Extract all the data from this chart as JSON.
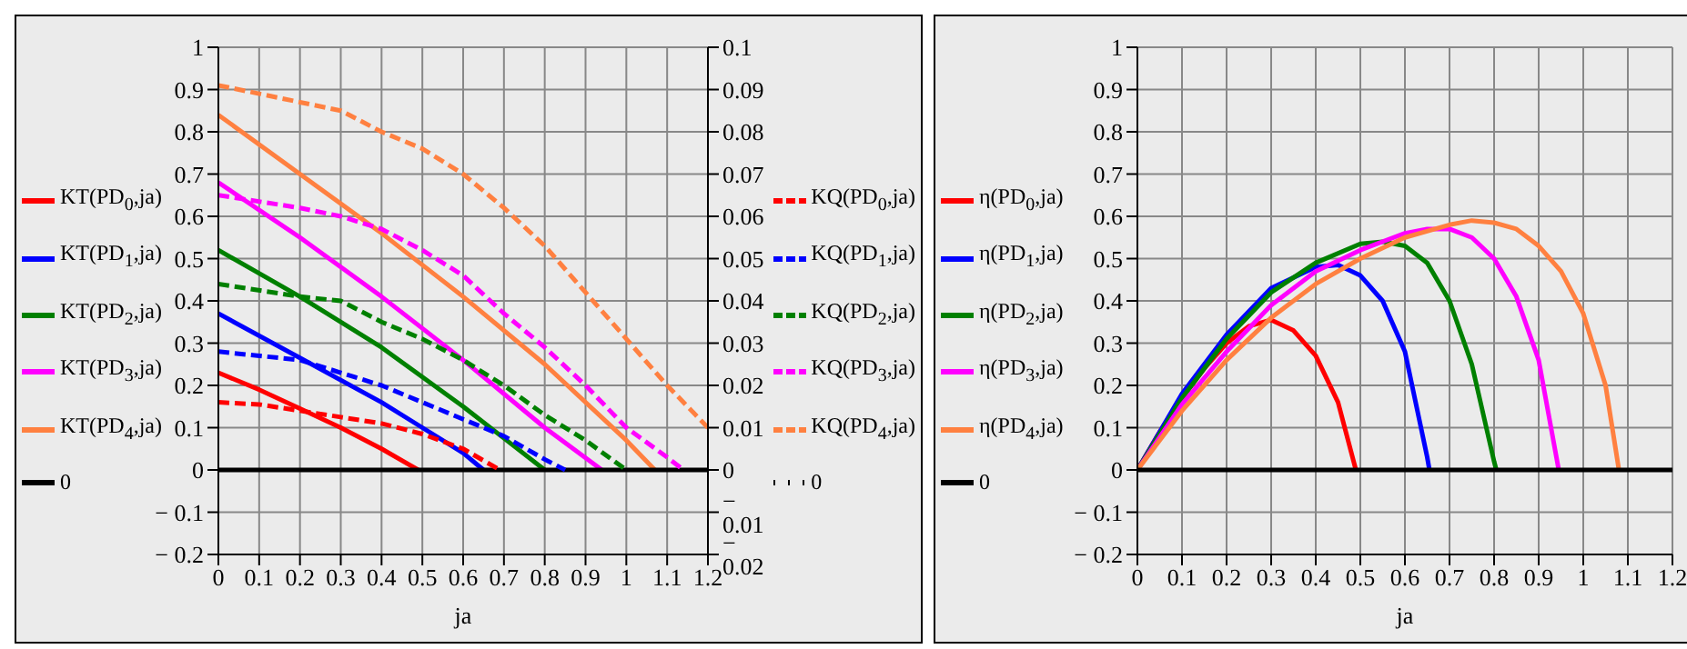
{
  "chart_data": [
    {
      "type": "line",
      "xlabel": "ja",
      "xlim": [
        0,
        1.2
      ],
      "xticks": [
        0,
        0.1,
        0.2,
        0.3,
        0.4,
        0.5,
        0.6,
        0.7,
        0.8,
        0.9,
        1,
        1.1,
        1.2
      ],
      "ylim": [
        -0.2,
        1
      ],
      "yticks": [
        -0.2,
        -0.1,
        0,
        0.1,
        0.2,
        0.3,
        0.4,
        0.5,
        0.6,
        0.7,
        0.8,
        0.9,
        1
      ],
      "y2lim": [
        -0.02,
        0.1
      ],
      "y2ticks": [
        -0.02,
        -0.01,
        0,
        0.01,
        0.02,
        0.03,
        0.04,
        0.05,
        0.06,
        0.07,
        0.08,
        0.09,
        0.1
      ],
      "grid": true,
      "legend": "left",
      "line_style": "solid",
      "series": [
        {
          "name": "KT(PD$_{0}$,ja)",
          "color": "#ff0000",
          "x": [
            0,
            0.1,
            0.2,
            0.3,
            0.4,
            0.49
          ],
          "values": [
            0.23,
            0.19,
            0.145,
            0.1,
            0.05,
            0
          ]
        },
        {
          "name": "KT(PD$_{1}$,ja)",
          "color": "#0000ff",
          "x": [
            0,
            0.2,
            0.4,
            0.5,
            0.6,
            0.65
          ],
          "values": [
            0.37,
            0.265,
            0.16,
            0.1,
            0.04,
            0
          ]
        },
        {
          "name": "KT(PD$_{2}$,ja)",
          "color": "#008000",
          "x": [
            0,
            0.2,
            0.4,
            0.5,
            0.6,
            0.7,
            0.8
          ],
          "values": [
            0.52,
            0.41,
            0.29,
            0.22,
            0.15,
            0.075,
            0
          ]
        },
        {
          "name": "KT(PD$_{3}$,ja)",
          "color": "#ff00ff",
          "x": [
            0,
            0.2,
            0.4,
            0.6,
            0.8,
            0.94
          ],
          "values": [
            0.68,
            0.55,
            0.41,
            0.26,
            0.1,
            0
          ]
        },
        {
          "name": "KT(PD$_{4}$,ja)",
          "color": "#ff8040",
          "x": [
            0,
            0.2,
            0.4,
            0.6,
            0.8,
            1,
            1.07
          ],
          "values": [
            0.84,
            0.7,
            0.56,
            0.41,
            0.25,
            0.07,
            0
          ]
        },
        {
          "name": "0",
          "color": "#000000",
          "x": [
            0,
            1.2
          ],
          "values": [
            0,
            0
          ]
        },
        {
          "name": "KQ(PD$_{0}$,ja)",
          "color": "#ff0000",
          "axis": "y2",
          "line_style": "dashed",
          "x": [
            0,
            0.1,
            0.2,
            0.3,
            0.4,
            0.5,
            0.6,
            0.69
          ],
          "values": [
            0.016,
            0.0155,
            0.014,
            0.0125,
            0.011,
            0.0085,
            0.005,
            0
          ]
        },
        {
          "name": "KQ(PD$_{1}$,ja)",
          "color": "#0000ff",
          "axis": "y2",
          "line_style": "dashed",
          "x": [
            0,
            0.2,
            0.3,
            0.4,
            0.5,
            0.6,
            0.7,
            0.8,
            0.85
          ],
          "values": [
            0.028,
            0.026,
            0.023,
            0.02,
            0.016,
            0.012,
            0.008,
            0.0025,
            0
          ]
        },
        {
          "name": "KQ(PD$_{2}$,ja)",
          "color": "#008000",
          "axis": "y2",
          "line_style": "dashed",
          "x": [
            0,
            0.2,
            0.3,
            0.4,
            0.5,
            0.6,
            0.7,
            0.8,
            0.9,
            1
          ],
          "values": [
            0.044,
            0.041,
            0.04,
            0.035,
            0.031,
            0.026,
            0.02,
            0.013,
            0.007,
            0
          ]
        },
        {
          "name": "KQ(PD$_{3}$,ja)",
          "color": "#ff00ff",
          "axis": "y2",
          "line_style": "dashed",
          "x": [
            0,
            0.2,
            0.3,
            0.4,
            0.5,
            0.6,
            0.7,
            0.8,
            0.9,
            1,
            1.1,
            1.14
          ],
          "values": [
            0.065,
            0.062,
            0.06,
            0.057,
            0.052,
            0.046,
            0.037,
            0.029,
            0.02,
            0.01,
            0.003,
            0
          ]
        },
        {
          "name": "KQ(PD$_{4}$,ja)",
          "color": "#ff8040",
          "axis": "y2",
          "line_style": "dashed",
          "x": [
            0,
            0.1,
            0.2,
            0.3,
            0.4,
            0.5,
            0.6,
            0.7,
            0.8,
            0.9,
            1,
            1.1,
            1.2
          ],
          "values": [
            0.091,
            0.089,
            0.087,
            0.085,
            0.08,
            0.076,
            0.07,
            0.062,
            0.053,
            0.042,
            0.031,
            0.02,
            0.01
          ]
        },
        {
          "name": "0",
          "color": "#000000",
          "axis": "y2",
          "line_style": "dotted",
          "values": [
            null,
            null
          ]
        }
      ]
    },
    {
      "type": "line",
      "xlabel": "ja",
      "xlim": [
        0,
        1.2
      ],
      "xticks": [
        0,
        0.1,
        0.2,
        0.3,
        0.4,
        0.5,
        0.6,
        0.7,
        0.8,
        0.9,
        1,
        1.1,
        1.2
      ],
      "ylim": [
        -0.2,
        1
      ],
      "yticks": [
        -0.2,
        -0.1,
        0,
        0.1,
        0.2,
        0.3,
        0.4,
        0.5,
        0.6,
        0.7,
        0.8,
        0.9,
        1
      ],
      "grid": true,
      "legend": "left",
      "line_style": "solid",
      "series": [
        {
          "name": "η(PD$_{0}$,ja)",
          "color": "#ff0000",
          "x": [
            0,
            0.05,
            0.1,
            0.15,
            0.2,
            0.25,
            0.3,
            0.35,
            0.4,
            0.45,
            0.49
          ],
          "values": [
            0,
            0.09,
            0.17,
            0.24,
            0.3,
            0.34,
            0.355,
            0.33,
            0.27,
            0.16,
            0
          ]
        },
        {
          "name": "η(PD$_{1}$,ja)",
          "color": "#0000ff",
          "x": [
            0,
            0.1,
            0.2,
            0.3,
            0.4,
            0.45,
            0.5,
            0.55,
            0.6,
            0.65,
            0.655
          ],
          "values": [
            0,
            0.18,
            0.32,
            0.43,
            0.48,
            0.485,
            0.46,
            0.4,
            0.28,
            0.03,
            0
          ]
        },
        {
          "name": "η(PD$_{2}$,ja)",
          "color": "#008000",
          "x": [
            0,
            0.1,
            0.2,
            0.3,
            0.4,
            0.5,
            0.55,
            0.6,
            0.65,
            0.7,
            0.75,
            0.8,
            0.805
          ],
          "values": [
            0,
            0.17,
            0.31,
            0.42,
            0.49,
            0.535,
            0.54,
            0.53,
            0.49,
            0.4,
            0.25,
            0.02,
            0
          ]
        },
        {
          "name": "η(PD$_{3}$,ja)",
          "color": "#ff00ff",
          "x": [
            0,
            0.1,
            0.2,
            0.3,
            0.4,
            0.5,
            0.6,
            0.65,
            0.7,
            0.75,
            0.8,
            0.85,
            0.9,
            0.945
          ],
          "values": [
            0,
            0.155,
            0.28,
            0.39,
            0.47,
            0.52,
            0.56,
            0.57,
            0.57,
            0.55,
            0.5,
            0.41,
            0.26,
            0
          ]
        },
        {
          "name": "η(PD$_{4}$,ja)",
          "color": "#ff8040",
          "x": [
            0,
            0.1,
            0.2,
            0.3,
            0.4,
            0.5,
            0.6,
            0.7,
            0.75,
            0.8,
            0.85,
            0.9,
            0.95,
            1,
            1.05,
            1.08
          ],
          "values": [
            0,
            0.14,
            0.26,
            0.36,
            0.44,
            0.5,
            0.55,
            0.58,
            0.59,
            0.585,
            0.57,
            0.53,
            0.47,
            0.37,
            0.2,
            0
          ]
        },
        {
          "name": "0",
          "color": "#000000",
          "x": [
            0,
            1.2
          ],
          "values": [
            0,
            0
          ]
        }
      ]
    }
  ]
}
